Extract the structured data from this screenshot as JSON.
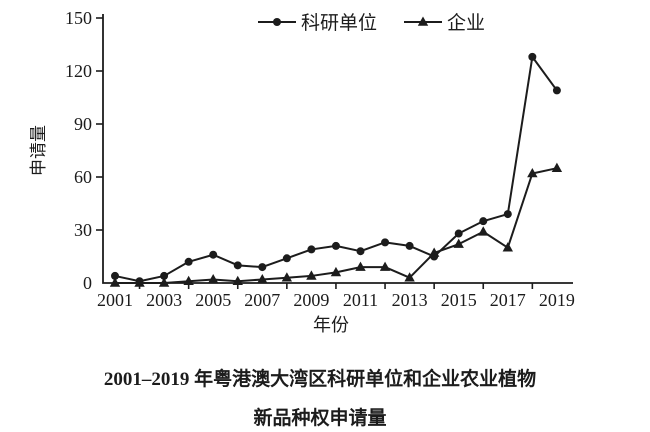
{
  "page": {
    "background": "#ffffff",
    "ink_color": "#1c1c1c"
  },
  "chart_data": {
    "type": "line",
    "title": "",
    "xlabel": "年份",
    "ylabel": "申请量",
    "ylim": [
      0,
      150
    ],
    "y_ticks": [
      0,
      30,
      60,
      90,
      120,
      150
    ],
    "grid": false,
    "legend_position": "top-center",
    "years": [
      2001,
      2002,
      2003,
      2004,
      2005,
      2006,
      2007,
      2008,
      2009,
      2010,
      2011,
      2012,
      2013,
      2014,
      2015,
      2016,
      2017,
      2018,
      2019
    ],
    "x_tick_labels": [
      "2001",
      "2003",
      "2005",
      "2007",
      "2009",
      "2011",
      "2013",
      "2015",
      "2017",
      "2019"
    ],
    "series": [
      {
        "name": "科研单位",
        "marker": "circle",
        "color": "#1c1c1c",
        "values": [
          4,
          1,
          4,
          12,
          16,
          10,
          9,
          14,
          19,
          21,
          18,
          23,
          21,
          15,
          28,
          35,
          39,
          128,
          109
        ]
      },
      {
        "name": "企业",
        "marker": "triangle",
        "color": "#1c1c1c",
        "values": [
          0,
          0,
          0,
          1,
          2,
          1,
          2,
          3,
          4,
          6,
          9,
          9,
          3,
          17,
          22,
          29,
          20,
          62,
          65
        ]
      }
    ]
  },
  "caption": {
    "line1": "2001–2019 年粤港澳大湾区科研单位和企业农业植物",
    "line2": "新品种权申请量"
  }
}
